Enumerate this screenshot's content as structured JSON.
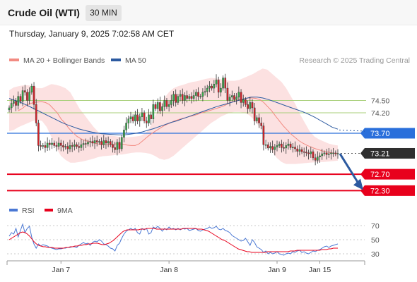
{
  "header": {
    "title": "Crude Oil (WTI)",
    "timeframe": "30 MIN"
  },
  "timestamp": "Thursday, January 9, 2025 7:02:58 AM CET",
  "credit": "Research © 2025 Trading Central",
  "legend": {
    "ma20_bb": {
      "label": "MA 20 + Bollinger Bands",
      "color": "#f28b82"
    },
    "ma50": {
      "label": "MA 50",
      "color": "#2c5aa0"
    },
    "rsi": {
      "label": "RSI",
      "color": "#4a78d4"
    },
    "ma9": {
      "label": "9MA",
      "color": "#e8001c"
    }
  },
  "chart_data": [
    {
      "type": "candlestick",
      "instrument": "Crude Oil (WTI)",
      "interval": "30 MIN",
      "ylim": [
        72.1,
        75.3
      ],
      "levels": [
        {
          "value": 74.5,
          "label": "74.50",
          "kind": "resistance-green"
        },
        {
          "value": 74.2,
          "label": "74.20",
          "kind": "resistance-green"
        },
        {
          "value": 73.7,
          "label": "73.70",
          "kind": "pivot-blue"
        },
        {
          "value": 73.21,
          "label": "73.21",
          "kind": "last-price"
        },
        {
          "value": 72.7,
          "label": "72.70",
          "kind": "support-red"
        },
        {
          "value": 72.3,
          "label": "72.30",
          "kind": "support-red"
        }
      ],
      "close": [
        74.32,
        74.43,
        74.48,
        74.38,
        74.6,
        74.48,
        74.74,
        74.7,
        74.5,
        74.7,
        74.85,
        74.4,
        73.95,
        73.4,
        73.38,
        73.4,
        73.35,
        73.46,
        73.42,
        73.46,
        73.4,
        73.38,
        73.46,
        73.4,
        73.36,
        73.38,
        73.32,
        73.4,
        73.38,
        73.42,
        73.38,
        73.35,
        73.42,
        73.45,
        73.44,
        73.48,
        73.5,
        73.46,
        73.52,
        73.48,
        73.5,
        73.42,
        73.52,
        73.46,
        73.5,
        73.42,
        73.35,
        73.3,
        73.48,
        73.32,
        73.6,
        73.78,
        73.95,
        74.05,
        74.1,
        74.0,
        74.15,
        74.0,
        74.1,
        74.2,
        74.0,
        73.95,
        74.15,
        74.05,
        74.4,
        74.3,
        74.45,
        74.25,
        74.35,
        74.5,
        74.35,
        74.4,
        74.5,
        74.65,
        74.45,
        74.6,
        74.65,
        74.5,
        74.62,
        74.55,
        74.6,
        74.55,
        74.62,
        74.7,
        74.6,
        74.6,
        74.7,
        74.72,
        74.8,
        74.85,
        74.8,
        74.9,
        75.0,
        74.7,
        74.8,
        75.05,
        74.8,
        74.5,
        74.58,
        74.62,
        74.52,
        74.58,
        74.7,
        74.45,
        74.52,
        74.4,
        74.3,
        74.45,
        74.32,
        74.0,
        74.08,
        73.95,
        73.88,
        73.42,
        73.42,
        73.34,
        73.38,
        73.3,
        73.36,
        73.4,
        73.44,
        73.35,
        73.34,
        73.4,
        73.44,
        73.35,
        73.36,
        73.32,
        73.26,
        73.3,
        73.25,
        73.24,
        73.22,
        73.2,
        73.25,
        73.1,
        73.04,
        73.12,
        73.15,
        73.2,
        73.22,
        73.18,
        73.2,
        73.22,
        73.22,
        73.2,
        73.21
      ],
      "ma20": [
        74.25,
        74.3,
        74.38,
        74.42,
        74.45,
        74.46,
        74.47,
        74.45,
        74.4,
        74.3,
        74.2,
        74.05,
        73.95,
        73.82,
        73.72,
        73.63,
        73.57,
        73.53,
        73.5,
        73.47,
        73.45,
        73.43,
        73.42,
        73.42,
        73.43,
        73.44,
        73.44,
        73.43,
        73.41,
        73.4,
        73.4,
        73.44,
        73.52,
        73.6,
        73.68,
        73.74,
        73.8,
        73.86,
        73.91,
        73.95,
        74.0,
        74.03,
        74.06,
        74.08,
        74.11,
        74.13,
        74.16,
        74.2,
        74.22,
        74.25,
        74.28,
        74.31,
        74.34,
        74.38,
        74.43,
        74.47,
        74.5,
        74.52,
        74.54,
        74.56,
        74.56,
        74.55,
        74.52,
        74.45,
        74.35,
        74.25,
        74.12,
        74.0,
        73.88,
        73.78,
        73.68,
        73.6,
        73.52,
        73.46,
        73.41,
        73.37,
        73.33,
        73.3,
        73.27,
        73.25,
        73.23,
        73.21,
        73.2
      ],
      "ma20_from_bar": 4,
      "bb_upper": [
        74.75,
        74.82,
        74.85,
        74.87,
        74.87,
        74.85,
        74.8,
        74.8,
        74.85,
        74.9,
        74.88,
        74.85,
        74.8,
        74.7,
        74.5,
        74.3,
        74.15,
        74.0,
        73.85,
        73.73,
        73.68,
        73.66,
        73.64,
        73.62,
        73.6,
        73.6,
        73.61,
        73.62,
        73.64,
        73.7,
        73.85,
        74.1,
        74.35,
        74.55,
        74.7,
        74.8,
        74.85,
        74.88,
        74.92,
        74.95,
        74.97,
        75.0,
        75.03,
        75.05,
        75.04,
        75.02,
        75.0,
        74.98,
        74.98,
        75.0,
        75.05,
        75.1,
        75.15,
        75.22,
        75.28,
        75.25,
        75.15,
        75.05,
        74.95,
        74.8,
        74.6,
        74.4,
        74.15,
        73.95,
        73.75,
        73.62,
        73.55,
        73.5,
        73.45,
        73.42,
        73.4
      ],
      "bb_lower": [
        73.75,
        73.78,
        73.85,
        73.9,
        73.95,
        74.0,
        74.03,
        74.0,
        73.85,
        73.6,
        73.35,
        73.15,
        73.05,
        72.98,
        72.98,
        73.0,
        73.02,
        73.05,
        73.08,
        73.12,
        73.14,
        73.15,
        73.16,
        73.18,
        73.18,
        73.2,
        73.22,
        73.23,
        73.23,
        73.22,
        73.2,
        73.15,
        73.08,
        73.05,
        73.08,
        73.15,
        73.25,
        73.35,
        73.45,
        73.55,
        73.65,
        73.75,
        73.85,
        73.95,
        74.02,
        74.1,
        74.15,
        74.2,
        74.22,
        74.22,
        74.2,
        74.15,
        74.05,
        73.9,
        73.7,
        73.45,
        73.25,
        73.1,
        73.0,
        72.95,
        72.95,
        72.95,
        72.96,
        72.97,
        72.98,
        72.99,
        73.0,
        73.0,
        73.01,
        73.02,
        73.03
      ],
      "ma50": [
        74.55,
        74.5,
        74.45,
        74.39,
        74.32,
        74.25,
        74.18,
        74.11,
        74.04,
        73.97,
        73.91,
        73.86,
        73.81,
        73.77,
        73.74,
        73.71,
        73.69,
        73.68,
        73.67,
        73.66,
        73.66,
        73.68,
        73.7,
        73.73,
        73.77,
        73.81,
        73.86,
        73.91,
        73.96,
        74.0,
        74.05,
        74.1,
        74.15,
        74.2,
        74.25,
        74.3,
        74.35,
        74.39,
        74.43,
        74.47,
        74.51,
        74.55,
        74.58,
        74.58,
        74.56,
        74.52,
        74.47,
        74.42,
        74.37,
        74.32,
        74.27,
        74.22,
        74.16,
        74.09,
        74.01,
        73.93,
        73.85,
        73.8
      ],
      "ma50_projection": [
        73.78,
        73.75
      ],
      "forecast_arrow": {
        "from": 73.2,
        "to": 72.35
      },
      "x_ticks": [
        {
          "label": "Jan 7",
          "bar": 23
        },
        {
          "label": "Jan 8",
          "bar": 71
        },
        {
          "label": "Jan 9",
          "bar": 119
        },
        {
          "label": "Jan 15",
          "bar": 138
        }
      ]
    },
    {
      "type": "line",
      "indicator": "RSI",
      "ylim": [
        22,
        78
      ],
      "levels": [
        {
          "value": 70,
          "label": "70"
        },
        {
          "value": 50,
          "label": "50"
        },
        {
          "value": 30,
          "label": "30"
        }
      ],
      "rsi": [
        55,
        60,
        58,
        66,
        54,
        63,
        72,
        60,
        66,
        69,
        54,
        44,
        38,
        44,
        41,
        43,
        42,
        41,
        39,
        38,
        37,
        36,
        37,
        37,
        38,
        38,
        39,
        39,
        40,
        40,
        39,
        42,
        44,
        46,
        44,
        45,
        42,
        46,
        48,
        47,
        50,
        48,
        44,
        43,
        41,
        38,
        37,
        34,
        42,
        45,
        52,
        58,
        62,
        64,
        66,
        64,
        66,
        60,
        58,
        66,
        64,
        66,
        58,
        60,
        68,
        66,
        69,
        66,
        62,
        66,
        64,
        68,
        65,
        66,
        64,
        66,
        64,
        66,
        65,
        66,
        63,
        64,
        65,
        66,
        63,
        62,
        64,
        65,
        66,
        68,
        66,
        67,
        69,
        65,
        64,
        66,
        63,
        62,
        60,
        56,
        54,
        52,
        50,
        48,
        49,
        52,
        47,
        42,
        50,
        46,
        40,
        38,
        36,
        32,
        34,
        30,
        32,
        30,
        31,
        33,
        30,
        29,
        28,
        30,
        31,
        30,
        33,
        32,
        34,
        35,
        32,
        33,
        31,
        30,
        32,
        34,
        33,
        35,
        36,
        38,
        40,
        41,
        39,
        41,
        42,
        43,
        44
      ],
      "ma9": [
        50,
        52,
        54,
        56,
        58,
        60,
        61,
        60,
        58,
        55,
        51,
        47,
        44,
        42,
        41,
        40,
        40,
        39,
        39,
        39,
        38,
        38,
        38,
        38,
        38,
        39,
        39,
        40,
        40,
        41,
        41,
        42,
        42,
        43,
        43,
        44,
        44,
        45,
        45,
        45,
        44,
        43,
        43,
        44,
        45,
        47,
        49,
        52,
        55,
        58,
        61,
        63,
        64,
        64,
        64,
        64,
        64,
        64,
        65,
        65,
        65,
        66,
        66,
        66,
        66,
        65,
        65,
        65,
        65,
        65,
        65,
        65,
        65,
        65,
        65,
        65,
        65,
        66,
        66,
        66,
        66,
        66,
        66,
        65,
        65,
        65,
        64,
        63,
        62,
        60,
        58,
        56,
        54,
        52,
        50,
        49,
        47,
        45,
        43,
        41,
        39,
        37,
        36,
        35,
        34,
        33,
        33,
        32,
        32,
        32,
        32,
        32,
        32,
        32,
        33,
        33,
        33,
        33,
        33,
        33,
        33,
        33,
        33,
        33,
        34,
        34,
        34,
        35,
        35,
        35,
        35,
        35,
        35,
        35,
        35,
        35,
        35,
        35,
        36,
        36,
        36,
        37,
        37,
        38,
        38,
        38
      ],
      "rsi_from_bar": 0
    }
  ]
}
